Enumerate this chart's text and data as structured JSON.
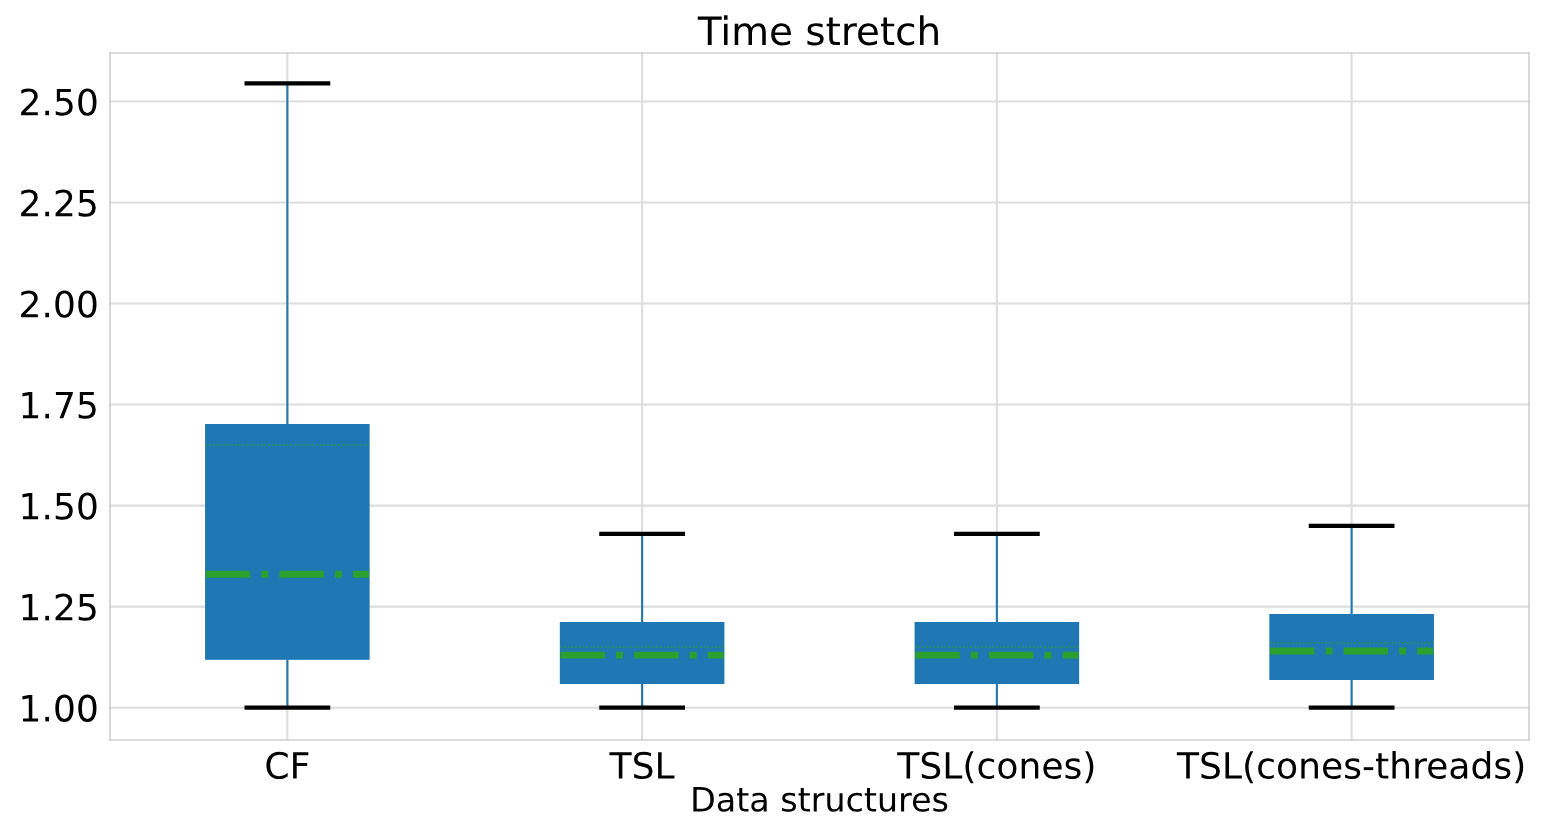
{
  "chart_data": {
    "type": "box",
    "title": "Time stretch",
    "xlabel": "Data structures",
    "categories": [
      "CF",
      "TSL",
      "TSL(cones)",
      "TSL(cones-threads)"
    ],
    "boxes": [
      {
        "low": 1.0,
        "q1": 1.12,
        "median": 1.33,
        "q3": 1.7,
        "high": 2.545,
        "mean": 1.65
      },
      {
        "low": 1.0,
        "q1": 1.06,
        "median": 1.13,
        "q3": 1.21,
        "high": 1.43,
        "mean": 1.15
      },
      {
        "low": 1.0,
        "q1": 1.06,
        "median": 1.13,
        "q3": 1.21,
        "high": 1.43,
        "mean": 1.15
      },
      {
        "low": 1.0,
        "q1": 1.07,
        "median": 1.14,
        "q3": 1.23,
        "high": 1.45,
        "mean": 1.16
      }
    ],
    "color": "#1f77b4",
    "ylim": [
      0.92,
      2.62
    ],
    "yticks": [
      {
        "value": 1.0,
        "label": "1.00"
      },
      {
        "value": 1.25,
        "label": "1.25"
      },
      {
        "value": 1.5,
        "label": "1.50"
      },
      {
        "value": 1.75,
        "label": "1.75"
      },
      {
        "value": 2.0,
        "label": "2.00"
      },
      {
        "value": 2.25,
        "label": "2.25"
      },
      {
        "value": 2.5,
        "label": "2.50"
      }
    ],
    "grid": true
  }
}
